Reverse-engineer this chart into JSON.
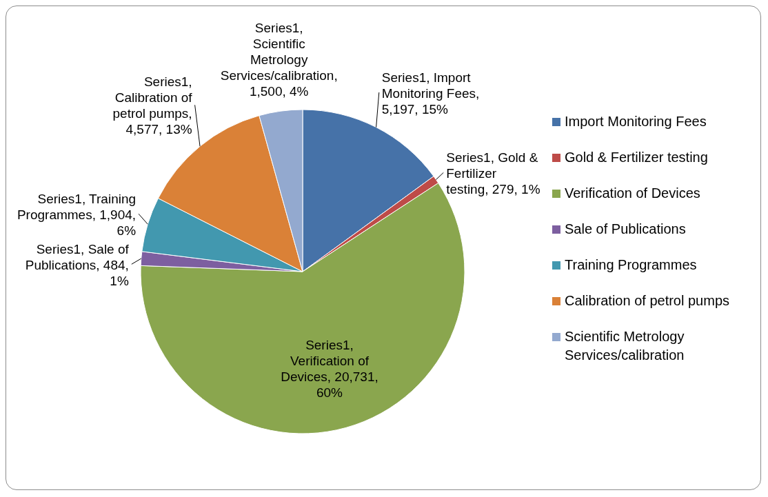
{
  "chart_data": {
    "type": "pie",
    "categories": [
      "Import Monitoring Fees",
      "Gold & Fertilizer testing",
      "Verification of Devices",
      "Sale of Publications",
      "Training Programmes",
      "Calibration of petrol pumps",
      "Scientific Metrology Services/calibration"
    ],
    "values": [
      5197,
      279,
      20731,
      484,
      1904,
      4577,
      1500
    ],
    "colors": [
      "#4672a8",
      "#be4b48",
      "#8aa64e",
      "#7d5fa0",
      "#4298af",
      "#da8137",
      "#93a9cf"
    ],
    "value_labels": [
      "Series1, Import Monitoring Fees, 5,197, 15%",
      "Series1, Gold & Fertilizer testing, 279, 1%",
      "Series1, Verification of Devices, 20,731, 60%",
      "Series1, Sale of Publications, 484, 1%",
      "Series1, Training Programmes, 1,904, 6%",
      "Series1, Calibration of petrol pumps, 4,577, 13%",
      "Series1, Scientific Metrology Services/calibration, 1,500, 4%"
    ],
    "legend": "right"
  }
}
